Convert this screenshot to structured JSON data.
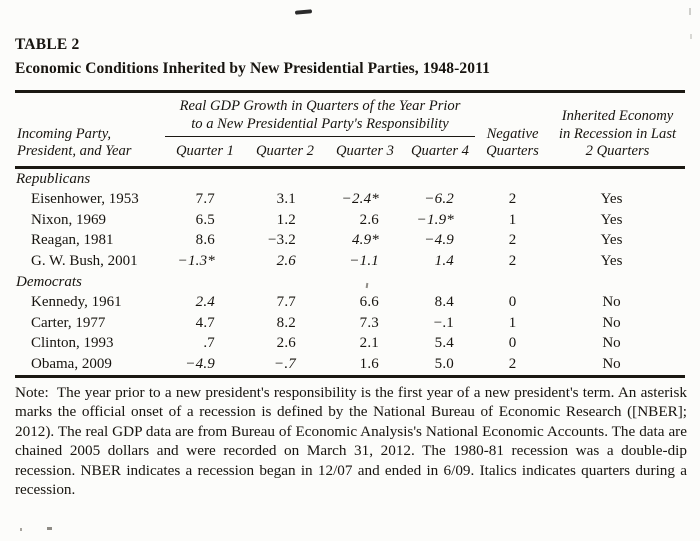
{
  "title": {
    "label": "TABLE 2",
    "subtitle": "Economic Conditions Inherited by New Presidential Parties, 1948-2011"
  },
  "table": {
    "col_president_header": "Incoming Party,\nPresident, and Year",
    "span_header": "Real GDP Growth in Quarters of the Year Prior\nto a New Presidential Party's Responsibility",
    "quarter_headers": [
      "Quarter 1",
      "Quarter 2",
      "Quarter 3",
      "Quarter 4"
    ],
    "negative_header": "Negative\nQuarters",
    "inherited_header": "Inherited Economy\nin Recession in Last\n2 Quarters",
    "sections": [
      {
        "label": "Republicans",
        "rows": [
          {
            "president": "Eisenhower, 1953",
            "quarters": [
              "7.7",
              "3.1",
              "−2.4*",
              "−6.2"
            ],
            "italics": [
              false,
              false,
              true,
              true
            ],
            "negative": "2",
            "inherited": "Yes"
          },
          {
            "president": "Nixon, 1969",
            "quarters": [
              "6.5",
              "1.2",
              "2.6",
              "−1.9*"
            ],
            "italics": [
              false,
              false,
              false,
              true
            ],
            "negative": "1",
            "inherited": "Yes"
          },
          {
            "president": "Reagan, 1981",
            "quarters": [
              "8.6",
              "−3.2",
              "4.9*",
              "−4.9"
            ],
            "italics": [
              false,
              false,
              true,
              true
            ],
            "negative": "2",
            "inherited": "Yes"
          },
          {
            "president": "G. W. Bush, 2001",
            "quarters": [
              "−1.3*",
              "2.6",
              "−1.1",
              "1.4"
            ],
            "italics": [
              true,
              true,
              true,
              true
            ],
            "negative": "2",
            "inherited": "Yes"
          }
        ]
      },
      {
        "label": "Democrats",
        "rows": [
          {
            "president": "Kennedy, 1961",
            "quarters": [
              "2.4",
              "7.7",
              "6.6",
              "8.4"
            ],
            "italics": [
              true,
              false,
              false,
              false
            ],
            "negative": "0",
            "inherited": "No"
          },
          {
            "president": "Carter, 1977",
            "quarters": [
              "4.7",
              "8.2",
              "7.3",
              "−.1"
            ],
            "italics": [
              false,
              false,
              false,
              false
            ],
            "negative": "1",
            "inherited": "No"
          },
          {
            "president": "Clinton, 1993",
            "quarters": [
              ".7",
              "2.6",
              "2.1",
              "5.4"
            ],
            "italics": [
              false,
              false,
              false,
              false
            ],
            "negative": "0",
            "inherited": "No"
          },
          {
            "president": "Obama, 2009",
            "quarters": [
              "−4.9",
              "−.7",
              "1.6",
              "5.0"
            ],
            "italics": [
              true,
              true,
              false,
              false
            ],
            "negative": "2",
            "inherited": "No"
          }
        ]
      }
    ]
  },
  "note": "Note:  The year prior to a new president's responsibility is the first year of a new president's term. An asterisk marks the official onset of a recession is defined by the National Bureau of Economic Research ([NBER]; 2012). The real GDP data are from Bureau of Economic Analysis's National Economic Accounts. The data are chained 2005 dollars and were recorded on March 31, 2012. The 1980-81 recession was a double-dip recession. NBER indicates a recession began in 12/07 and ended in 6/09. Italics indicates quarters during a recession."
}
